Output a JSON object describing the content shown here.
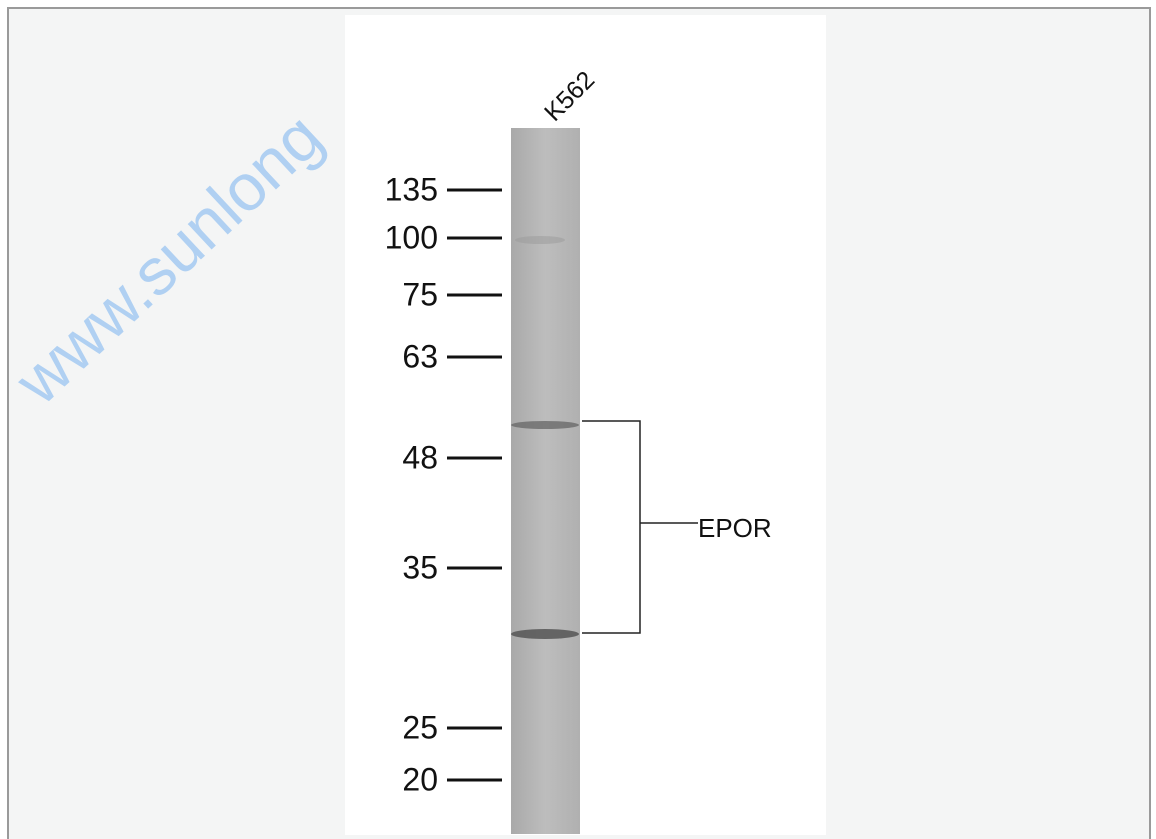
{
  "watermark": "www.sunlong",
  "lane_label": "K562",
  "markers": [
    "135",
    "100",
    "75",
    "63",
    "48",
    "35",
    "25",
    "20"
  ],
  "band_label": "EPOR"
}
